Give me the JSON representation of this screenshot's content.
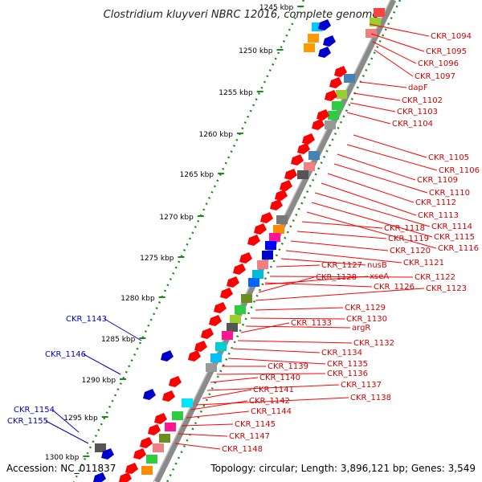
{
  "title": "Clostridium kluyveri NBRC 12016, complete genome",
  "accession": "Accession: NC_011837",
  "summary": "Topology: circular; Length: 3,896,121 bp; Genes: 3,549",
  "ticks": [
    "1245 kbp",
    "1250 kbp",
    "1255 kbp",
    "1260 kbp",
    "1265 kbp",
    "1270 kbp",
    "1275 kbp",
    "1280 kbp",
    "1285 kbp",
    "1290 kbp",
    "1295 kbp",
    "1300 kbp"
  ],
  "right_labels": [
    "CKR_1094",
    "CKR_1095",
    "CKR_1096",
    "CKR_1097",
    "dapF",
    "CKR_1102",
    "CKR_1103",
    "CKR_1104",
    "CKR_1105",
    "CKR_1106",
    "CKR_1109",
    "CKR_1110",
    "CKR_1112",
    "CKR_1113",
    "CKR_1114",
    "CKR_1115",
    "CKR_1116",
    "CKR_1118",
    "CKR_1119",
    "CKR_1120",
    "CKR_1121",
    "nusB",
    "CKR_1127",
    "CKR_1122",
    "xseA",
    "CKR_1128",
    "CKR_1123",
    "CKR_1126",
    "CKR_1129",
    "CKR_1130",
    "argR",
    "CKR_1133",
    "CKR_1132",
    "CKR_1134",
    "CKR_1135",
    "CKR_1139",
    "CKR_1136",
    "CKR_1140",
    "CKR_1137",
    "CKR_1141",
    "CKR_1138",
    "CKR_1142",
    "CKR_1144",
    "CKR_1145",
    "CKR_1147",
    "CKR_1148"
  ],
  "left_labels": [
    "CKR_1143",
    "CKR_1146",
    "CKR_1154",
    "CKR_1155"
  ],
  "colors": {
    "forward": "#ff0000",
    "reverse": "#0000cc",
    "tick_dots": "#1a8a1a",
    "backbone": "#888888"
  }
}
